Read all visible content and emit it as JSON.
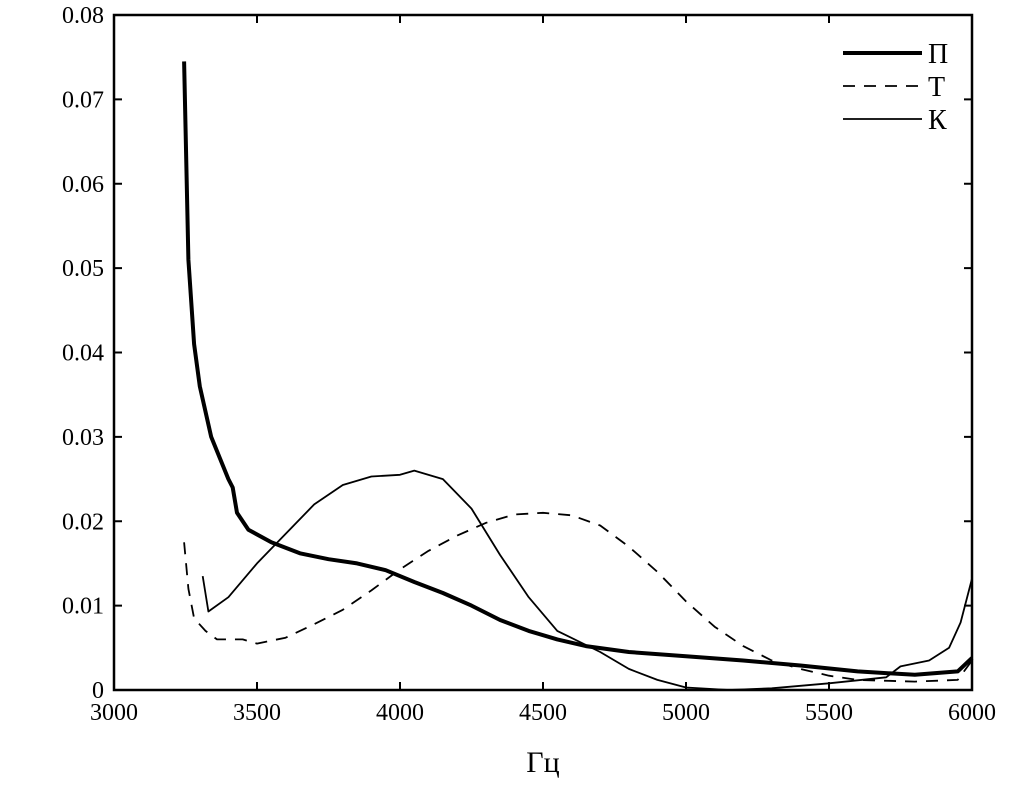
{
  "chart_data": {
    "type": "line",
    "title": "",
    "xlabel": "Гц",
    "ylabel": "",
    "xlim": [
      3000,
      6000
    ],
    "ylim": [
      0,
      0.08
    ],
    "xticks": [
      "3000",
      "3500",
      "4000",
      "4500",
      "5000",
      "5500",
      "6000"
    ],
    "yticks": [
      "0",
      "0.01",
      "0.02",
      "0.03",
      "0.04",
      "0.05",
      "0.06",
      "0.07",
      "0.08"
    ],
    "grid": false,
    "legend_position": "top-right",
    "series": [
      {
        "name": "П",
        "style": "thick-solid",
        "color": "#000000",
        "points": [
          [
            3245,
            0.0745
          ],
          [
            3260,
            0.051
          ],
          [
            3280,
            0.041
          ],
          [
            3300,
            0.036
          ],
          [
            3340,
            0.03
          ],
          [
            3400,
            0.025
          ],
          [
            3415,
            0.024
          ],
          [
            3430,
            0.021
          ],
          [
            3470,
            0.019
          ],
          [
            3550,
            0.0175
          ],
          [
            3650,
            0.0162
          ],
          [
            3750,
            0.0155
          ],
          [
            3850,
            0.015
          ],
          [
            3950,
            0.0142
          ],
          [
            4050,
            0.0128
          ],
          [
            4150,
            0.0115
          ],
          [
            4250,
            0.01
          ],
          [
            4350,
            0.0083
          ],
          [
            4450,
            0.007
          ],
          [
            4550,
            0.006
          ],
          [
            4650,
            0.0052
          ],
          [
            4800,
            0.0045
          ],
          [
            5000,
            0.004
          ],
          [
            5200,
            0.0035
          ],
          [
            5400,
            0.0029
          ],
          [
            5600,
            0.0022
          ],
          [
            5800,
            0.0018
          ],
          [
            5950,
            0.0022
          ],
          [
            6000,
            0.0038
          ]
        ]
      },
      {
        "name": "Т",
        "style": "dashed",
        "color": "#000000",
        "points": [
          [
            3245,
            0.0175
          ],
          [
            3260,
            0.012
          ],
          [
            3280,
            0.0085
          ],
          [
            3320,
            0.007
          ],
          [
            3360,
            0.006
          ],
          [
            3450,
            0.006
          ],
          [
            3500,
            0.0055
          ],
          [
            3600,
            0.0062
          ],
          [
            3700,
            0.0078
          ],
          [
            3800,
            0.0095
          ],
          [
            3900,
            0.0118
          ],
          [
            4000,
            0.0143
          ],
          [
            4100,
            0.0165
          ],
          [
            4200,
            0.0183
          ],
          [
            4300,
            0.0198
          ],
          [
            4400,
            0.0208
          ],
          [
            4500,
            0.021
          ],
          [
            4600,
            0.0207
          ],
          [
            4700,
            0.0195
          ],
          [
            4800,
            0.017
          ],
          [
            4900,
            0.014
          ],
          [
            5000,
            0.0105
          ],
          [
            5100,
            0.0075
          ],
          [
            5200,
            0.0052
          ],
          [
            5300,
            0.0035
          ],
          [
            5400,
            0.0025
          ],
          [
            5500,
            0.0017
          ],
          [
            5600,
            0.0012
          ],
          [
            5800,
            0.001
          ],
          [
            5950,
            0.0012
          ],
          [
            6000,
            0.0035
          ]
        ]
      },
      {
        "name": "К",
        "style": "thin-solid",
        "color": "#000000",
        "points": [
          [
            3310,
            0.0135
          ],
          [
            3330,
            0.0093
          ],
          [
            3400,
            0.011
          ],
          [
            3500,
            0.015
          ],
          [
            3600,
            0.0185
          ],
          [
            3700,
            0.022
          ],
          [
            3800,
            0.0243
          ],
          [
            3900,
            0.0253
          ],
          [
            4000,
            0.0255
          ],
          [
            4050,
            0.026
          ],
          [
            4150,
            0.025
          ],
          [
            4250,
            0.0215
          ],
          [
            4350,
            0.016
          ],
          [
            4450,
            0.011
          ],
          [
            4550,
            0.007
          ],
          [
            4700,
            0.0045
          ],
          [
            4800,
            0.0025
          ],
          [
            4900,
            0.0012
          ],
          [
            5000,
            0.0003
          ],
          [
            5150,
            0
          ],
          [
            5300,
            0.0002
          ],
          [
            5500,
            0.0008
          ],
          [
            5700,
            0.0015
          ],
          [
            5750,
            0.0028
          ],
          [
            5850,
            0.0035
          ],
          [
            5920,
            0.005
          ],
          [
            5960,
            0.008
          ],
          [
            6000,
            0.0132
          ]
        ]
      }
    ]
  }
}
